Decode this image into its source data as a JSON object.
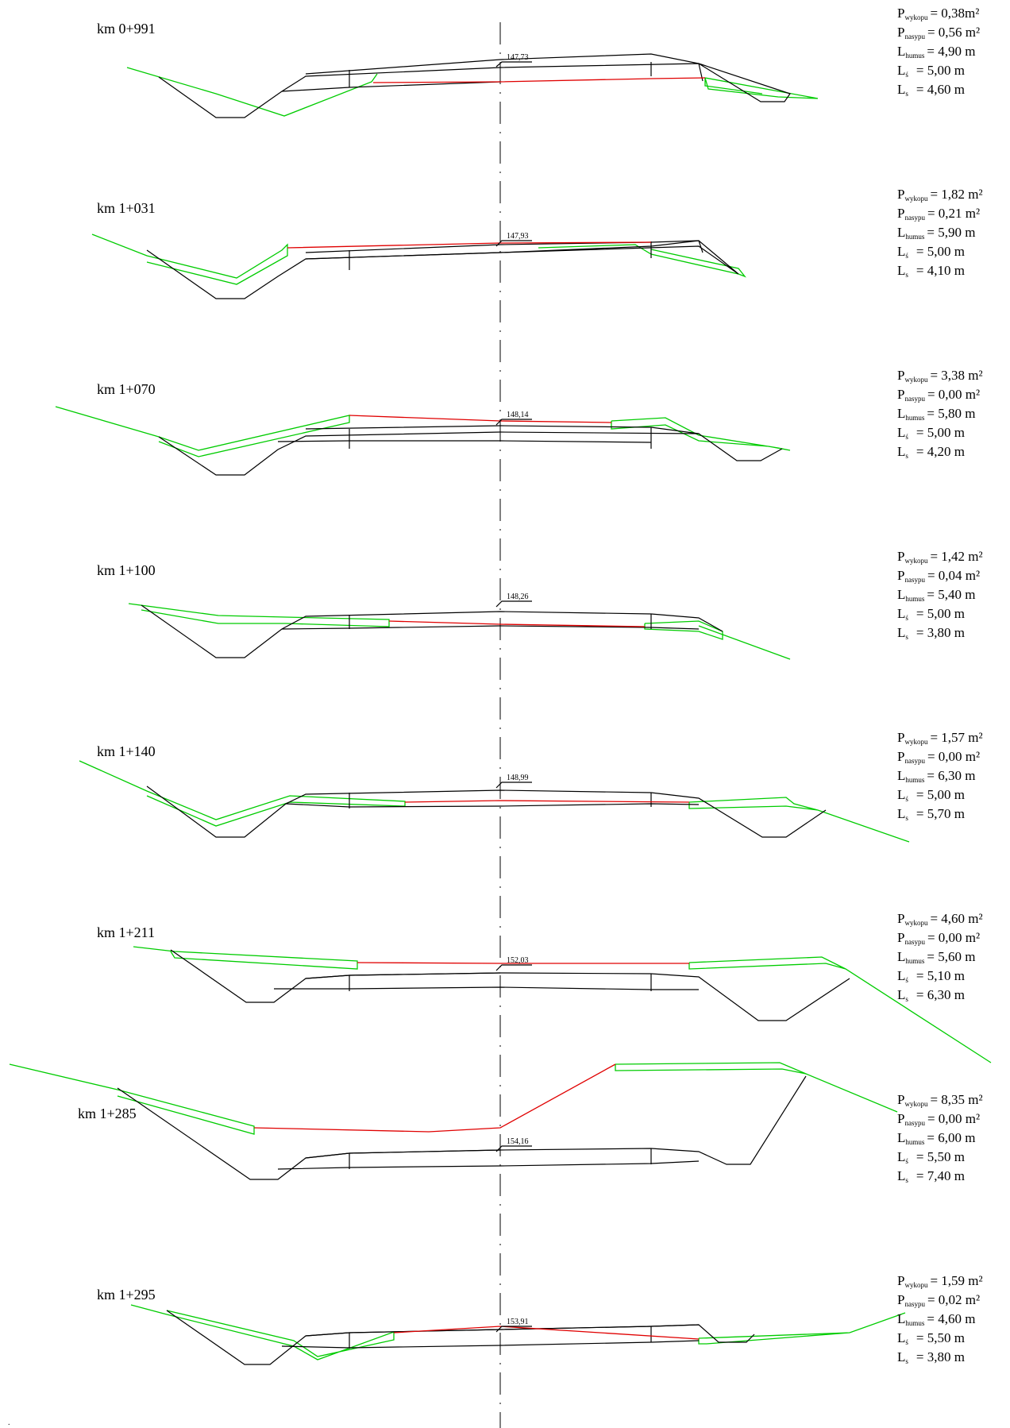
{
  "sections": [
    {
      "km": "km 0+991",
      "elev": "147,73",
      "params": [
        {
          "sym": "P",
          "sub": "wykopu",
          "val": "= 0,38m²"
        },
        {
          "sym": "P",
          "sub": "nasypu",
          "val": "= 0,56 m²"
        },
        {
          "sym": "L",
          "sub": "humus",
          "val": "= 4,90 m"
        },
        {
          "sym": "L",
          "sub": "ś",
          "val": "= 5,00 m"
        },
        {
          "sym": "L",
          "sub": "s",
          "val": "= 4,60 m"
        }
      ]
    },
    {
      "km": "km 1+031",
      "elev": "147,93",
      "params": [
        {
          "sym": "P",
          "sub": "wykopu",
          "val": "= 1,82 m²"
        },
        {
          "sym": "P",
          "sub": "nasypu",
          "val": "= 0,21 m²"
        },
        {
          "sym": "L",
          "sub": "humus",
          "val": "= 5,90 m"
        },
        {
          "sym": "L",
          "sub": "ś",
          "val": "= 5,00 m"
        },
        {
          "sym": "L",
          "sub": "s",
          "val": "= 4,10 m"
        }
      ]
    },
    {
      "km": "km 1+070",
      "elev": "148,14",
      "params": [
        {
          "sym": "P",
          "sub": "wykopu",
          "val": "= 3,38 m²"
        },
        {
          "sym": "P",
          "sub": "nasypu",
          "val": "= 0,00 m²"
        },
        {
          "sym": "L",
          "sub": "humus",
          "val": "= 5,80 m"
        },
        {
          "sym": "L",
          "sub": "ś",
          "val": "= 5,00 m"
        },
        {
          "sym": "L",
          "sub": "s",
          "val": "= 4,20 m"
        }
      ]
    },
    {
      "km": "km 1+100",
      "elev": "148,26",
      "params": [
        {
          "sym": "P",
          "sub": "wykopu",
          "val": "= 1,42 m²"
        },
        {
          "sym": "P",
          "sub": "nasypu",
          "val": "= 0,04 m²"
        },
        {
          "sym": "L",
          "sub": "humus",
          "val": "= 5,40 m"
        },
        {
          "sym": "L",
          "sub": "ś",
          "val": "= 5,00 m"
        },
        {
          "sym": "L",
          "sub": "s",
          "val": "= 3,80 m"
        }
      ]
    },
    {
      "km": "km 1+140",
      "elev": "148,99",
      "params": [
        {
          "sym": "P",
          "sub": "wykopu",
          "val": "= 1,57 m²"
        },
        {
          "sym": "P",
          "sub": "nasypu",
          "val": "= 0,00 m²"
        },
        {
          "sym": "L",
          "sub": "humus",
          "val": "= 6,30 m"
        },
        {
          "sym": "L",
          "sub": "ś",
          "val": "= 5,00 m"
        },
        {
          "sym": "L",
          "sub": "s",
          "val": "= 5,70 m"
        }
      ]
    },
    {
      "km": "km 1+211",
      "elev": "152,03",
      "params": [
        {
          "sym": "P",
          "sub": "wykopu",
          "val": "= 4,60 m²"
        },
        {
          "sym": "P",
          "sub": "nasypu",
          "val": "= 0,00 m²"
        },
        {
          "sym": "L",
          "sub": "humus",
          "val": "= 5,60 m"
        },
        {
          "sym": "L",
          "sub": "ś",
          "val": "= 5,10 m"
        },
        {
          "sym": "L",
          "sub": "s",
          "val": "= 6,30 m"
        }
      ]
    },
    {
      "km": "km 1+285",
      "elev": "154,16",
      "params": [
        {
          "sym": "P",
          "sub": "wykopu",
          "val": "= 8,35 m²"
        },
        {
          "sym": "P",
          "sub": "nasypu",
          "val": "= 0,00 m²"
        },
        {
          "sym": "L",
          "sub": "humus",
          "val": "= 6,00 m"
        },
        {
          "sym": "L",
          "sub": "ś",
          "val": "= 5,50 m"
        },
        {
          "sym": "L",
          "sub": "s",
          "val": "= 7,40 m"
        }
      ]
    },
    {
      "km": "km 1+295",
      "elev": "153,91",
      "params": [
        {
          "sym": "P",
          "sub": "wykopu",
          "val": "= 1,59 m²"
        },
        {
          "sym": "P",
          "sub": "nasypu",
          "val": "= 0,02 m²"
        },
        {
          "sym": "L",
          "sub": "humus",
          "val": "= 4,60 m"
        },
        {
          "sym": "L",
          "sub": "ś",
          "val": "= 5,50 m"
        },
        {
          "sym": "L",
          "sub": "s",
          "val": "= 3,80 m"
        }
      ]
    }
  ],
  "colors": {
    "road": "#000000",
    "terrain": "#00cc00",
    "cut_line": "#e00000"
  }
}
